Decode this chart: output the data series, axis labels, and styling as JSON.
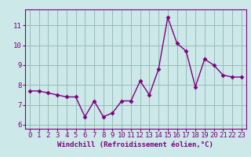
{
  "x": [
    0,
    1,
    2,
    3,
    4,
    5,
    6,
    7,
    8,
    9,
    10,
    11,
    12,
    13,
    14,
    15,
    16,
    17,
    18,
    19,
    20,
    21,
    22,
    23
  ],
  "y": [
    7.7,
    7.7,
    7.6,
    7.5,
    7.4,
    7.4,
    6.4,
    7.2,
    6.4,
    6.6,
    7.2,
    7.2,
    8.2,
    7.5,
    8.8,
    11.4,
    10.1,
    9.7,
    7.9,
    9.3,
    9.0,
    8.5,
    8.4,
    8.4
  ],
  "line_color": "#800080",
  "marker": "D",
  "marker_size": 2.5,
  "linewidth": 1.0,
  "xlabel": "Windchill (Refroidissement éolien,°C)",
  "xlabel_fontsize": 6.5,
  "xtick_labels": [
    "0",
    "1",
    "2",
    "3",
    "4",
    "5",
    "6",
    "7",
    "8",
    "9",
    "10",
    "11",
    "12",
    "13",
    "14",
    "15",
    "16",
    "17",
    "18",
    "19",
    "20",
    "21",
    "22",
    "23"
  ],
  "ytick_labels": [
    "6",
    "7",
    "8",
    "9",
    "10",
    "11"
  ],
  "yticks": [
    6,
    7,
    8,
    9,
    10,
    11
  ],
  "ylim": [
    5.8,
    11.8
  ],
  "xlim": [
    -0.5,
    23.5
  ],
  "background_color": "#cce8e8",
  "grid_color": "#99bbbb",
  "tick_fontsize": 6.5,
  "spine_color": "#800080",
  "fig_bg": "#cce8e8"
}
